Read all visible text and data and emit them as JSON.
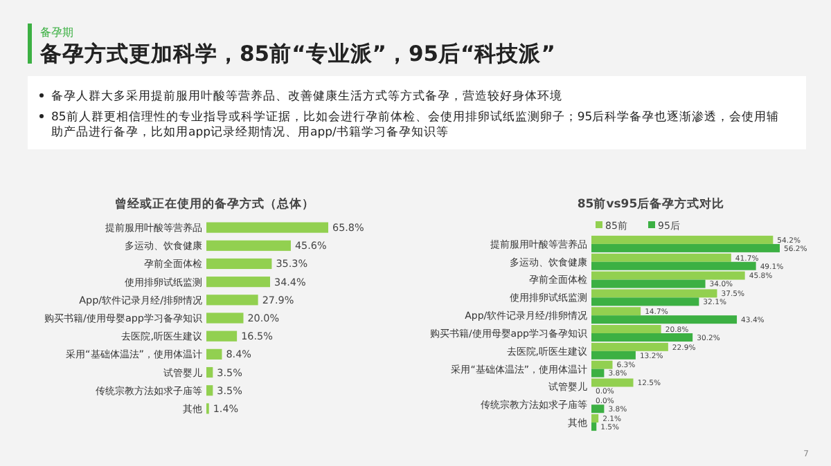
{
  "chart_data": [
    {
      "type": "other",
      "subtitle": "备孕期",
      "title": "备孕方式更加科学，85前“专业派”，95后“科技派”",
      "annotations": [
        "备孕人群大多采用提前服用叶酸等营养品、改善健康生活方式等方式备孕，营造较好身体环境",
        "85前人群更相信理性的专业指导或科学证据，比如会进行孕前体检、会使用排卵试纸监测卵子；95后科学备孕也逐渐渗透，会使用辅助产品进行备孕，比如用app记录经期情况、用app/书籍学习备孕知识等",
        "7"
      ]
    },
    {
      "type": "bar",
      "orientation": "horizontal",
      "title": "曾经或正在使用的备孕方式（总体）",
      "categories": [
        "提前服用叶酸等营养品",
        "多运动、饮食健康",
        "孕前全面体检",
        "使用排卵试纸监测",
        "App/软件记录月经/排卵情况",
        "购买书籍/使用母婴app学习备孕知识",
        "去医院,听医生建议",
        "采用“基础体温法”，使用体温计",
        "试管婴儿",
        "传统宗教方法如求子庙等",
        "其他"
      ],
      "values": [
        65.8,
        45.6,
        35.3,
        34.4,
        27.9,
        20.0,
        16.5,
        8.4,
        3.5,
        3.5,
        1.4
      ],
      "color": "#92d050",
      "data_labels": true,
      "value_labels": [
        "65.8%",
        "45.6%",
        "35.3%",
        "34.4%",
        "27.9%",
        "20.0%",
        "16.5%",
        "8.4%",
        "3.5%",
        "3.5%",
        "1.4%"
      ]
    },
    {
      "type": "bar",
      "orientation": "horizontal",
      "title": "85前vs95后备孕方式对比",
      "legend": "top",
      "categories": [
        "提前服用叶酸等营养品",
        "多运动、饮食健康",
        "孕前全面体检",
        "使用排卵试纸监测",
        "App/软件记录月经/排卵情况",
        "购买书籍/使用母婴app学习备孕知识",
        "去医院,听医生建议",
        "采用“基础体温法”，使用体温计",
        "试管婴儿",
        "传统宗教方法如求子庙等",
        "其他"
      ],
      "series": [
        {
          "name": "85前",
          "color": "#92d050",
          "values": [
            54.2,
            41.7,
            45.8,
            37.5,
            14.7,
            20.8,
            22.9,
            6.3,
            12.5,
            0.0,
            2.1
          ],
          "value_labels": [
            "54.2%",
            "41.7%",
            "45.8%",
            "37.5%",
            "14.7%",
            "20.8%",
            "22.9%",
            "6.3%",
            "12.5%",
            "0.0%",
            "2.1%"
          ]
        },
        {
          "name": "95后",
          "color": "#3cb043",
          "values": [
            56.2,
            49.1,
            34.0,
            32.1,
            43.4,
            30.2,
            13.2,
            3.8,
            0.0,
            3.8,
            1.5
          ],
          "value_labels": [
            "56.2%",
            "49.1%",
            "34.0%",
            "32.1%",
            "43.4%",
            "30.2%",
            "13.2%",
            "3.8%",
            "0.0%",
            "3.8%",
            "1.5%"
          ]
        }
      ],
      "data_labels": true
    }
  ]
}
